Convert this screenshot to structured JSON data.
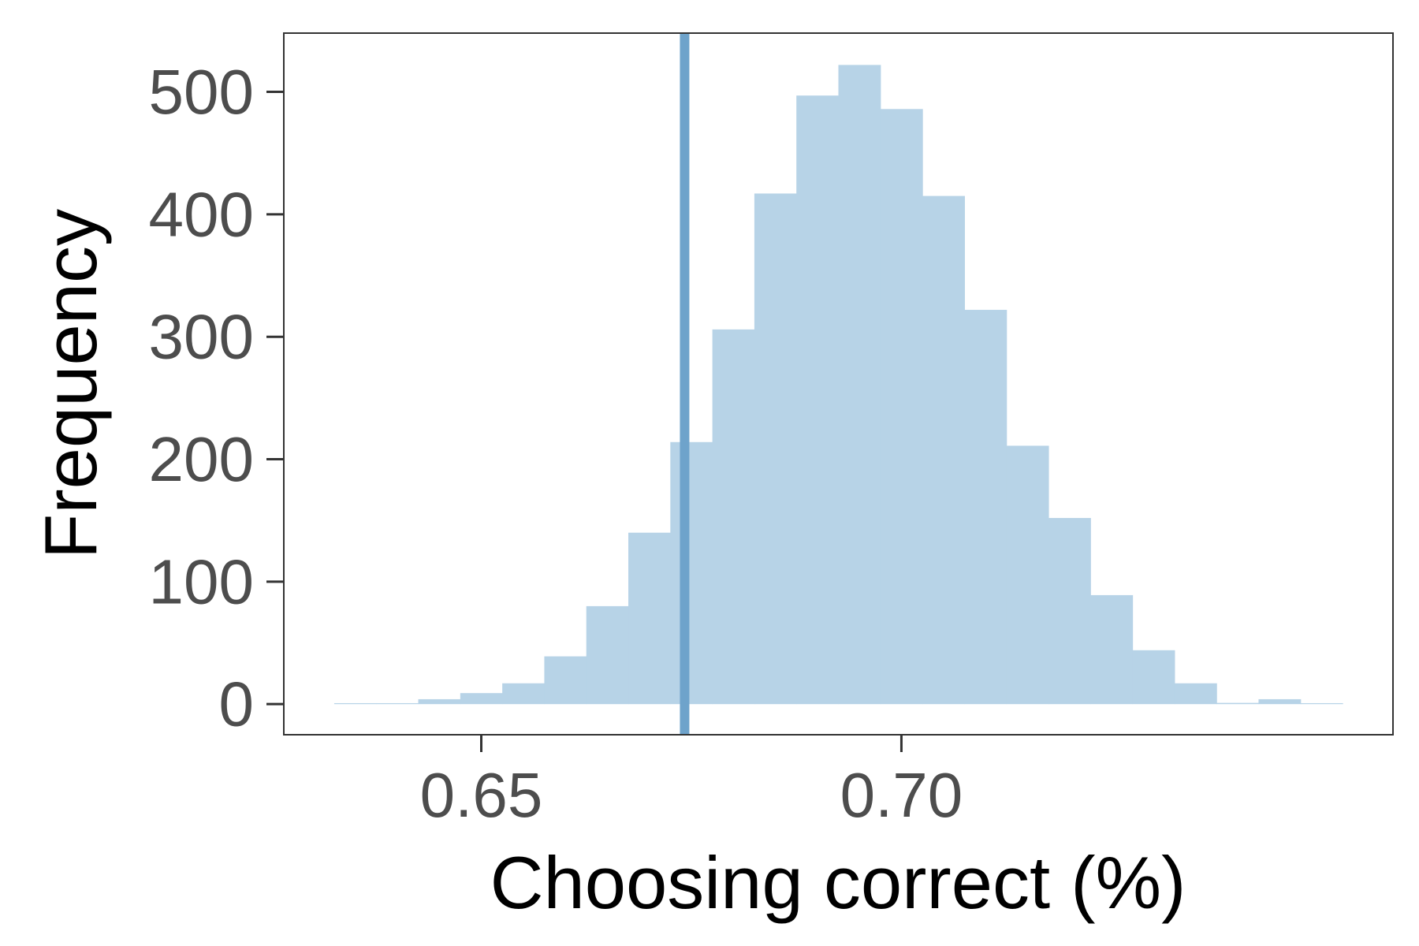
{
  "chart_data": {
    "type": "bar",
    "subtype": "histogram",
    "xlabel": "Choosing correct (%)",
    "ylabel": "Frequency",
    "xlim": [
      0.6265,
      0.7585
    ],
    "ylim": [
      -25,
      548
    ],
    "x_ticks": [
      {
        "value": 0.65,
        "label": "0.65"
      },
      {
        "value": 0.7,
        "label": "0.70"
      }
    ],
    "y_ticks": [
      {
        "value": 0,
        "label": "0"
      },
      {
        "value": 100,
        "label": "100"
      },
      {
        "value": 200,
        "label": "200"
      },
      {
        "value": 300,
        "label": "300"
      },
      {
        "value": 400,
        "label": "400"
      },
      {
        "value": 500,
        "label": "500"
      }
    ],
    "bins": {
      "start": 0.6325,
      "width": 0.005,
      "counts": [
        0,
        0,
        4,
        9,
        17,
        39,
        80,
        140,
        214,
        306,
        417,
        497,
        522,
        486,
        415,
        322,
        211,
        152,
        89,
        44,
        17,
        1,
        4,
        0
      ]
    },
    "reference_line": {
      "x": 0.6742
    },
    "bar_color": "#b7d3e7",
    "line_color": "#6ea3cb",
    "grid": false,
    "legend": "none"
  }
}
